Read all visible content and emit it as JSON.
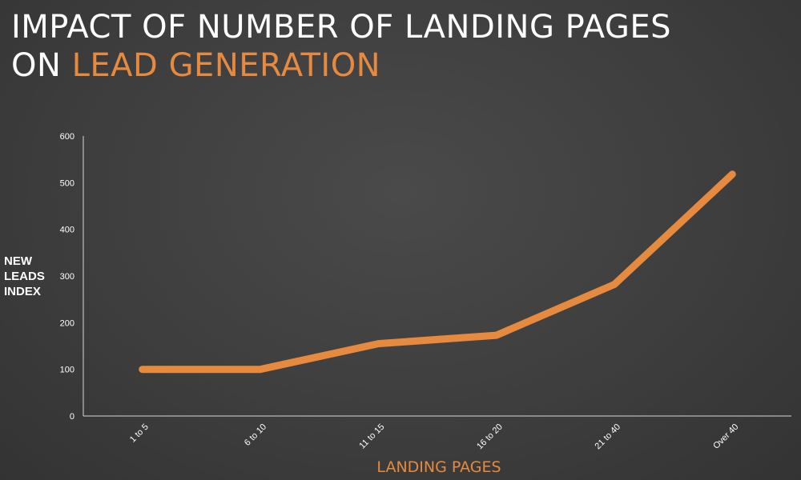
{
  "chart_data": {
    "type": "line",
    "title_line1": "IMPACT OF NUMBER OF LANDING PAGES",
    "title_line2_prefix": "ON ",
    "title_line2_accent": "LEAD GENERATION",
    "ylabel_lines": [
      "NEW",
      "LEADS",
      "INDEX"
    ],
    "xlabel": "LANDING PAGES",
    "categories": [
      "1 to 5",
      "6 to 10",
      "11 to 15",
      "16 to 20",
      "21 to 40",
      "Over 40"
    ],
    "values": [
      100,
      100,
      155,
      173,
      282,
      518
    ],
    "ylim": [
      0,
      600
    ],
    "yticks": [
      "0",
      "100",
      "200",
      "300",
      "400",
      "500",
      "600"
    ],
    "grid": false,
    "colors": {
      "line": "#e58a3f",
      "accent": "#e58a3f",
      "axis": "#d8d8d8",
      "text": "#ffffff"
    }
  }
}
